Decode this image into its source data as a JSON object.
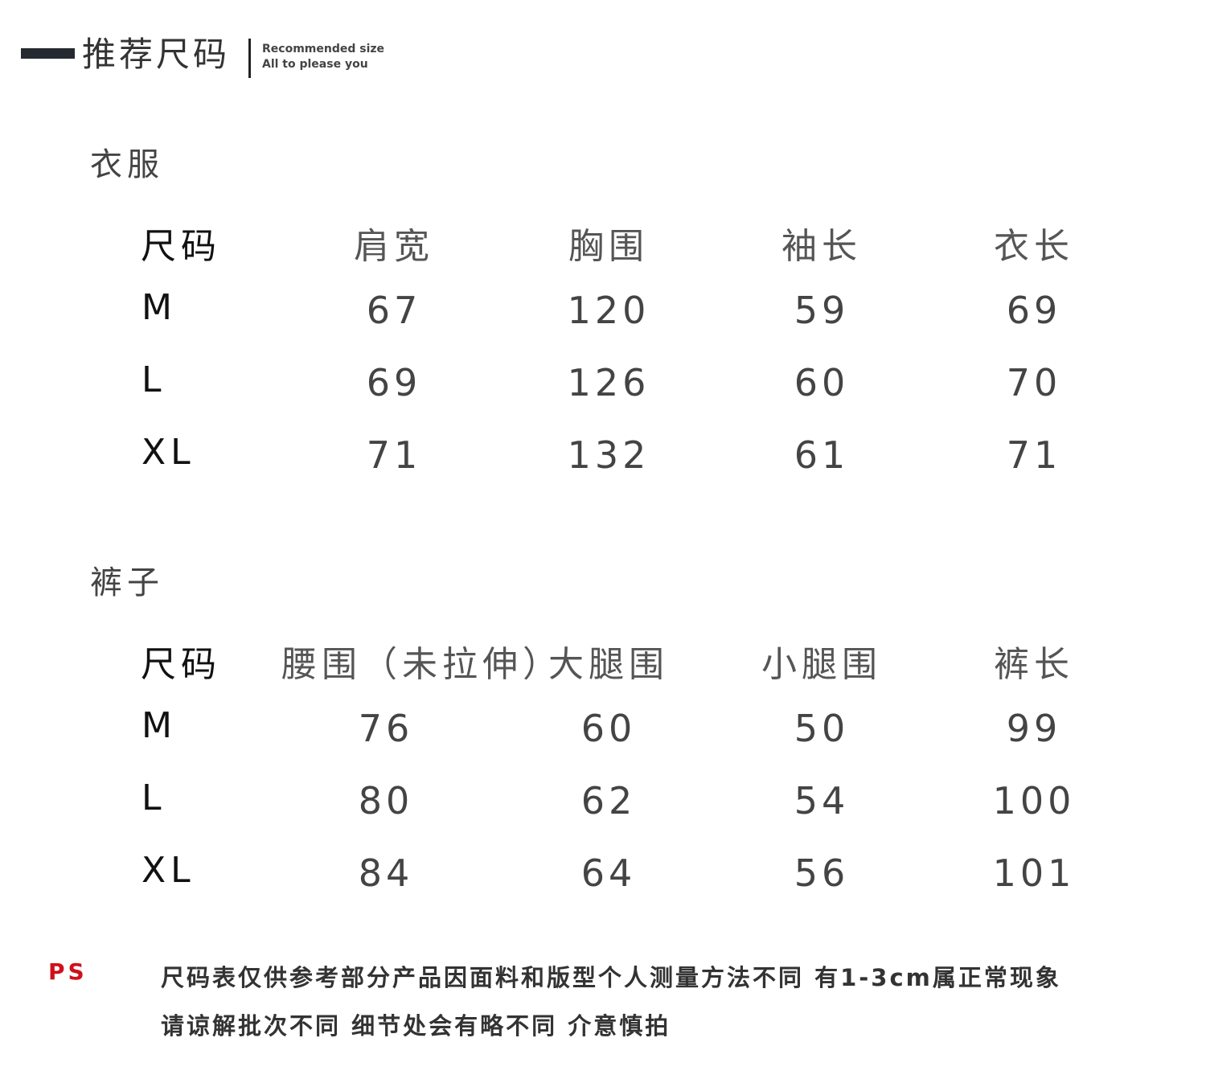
{
  "header": {
    "title": "推荐尺码",
    "subtitle_line1": "Recommended size",
    "subtitle_line2": "All to please you"
  },
  "tops": {
    "section_title": "衣服",
    "columns": [
      "尺码",
      "肩宽",
      "胸围",
      "袖长",
      "衣长"
    ],
    "rows": [
      {
        "size": "M",
        "values": [
          "67",
          "120",
          "59",
          "69"
        ]
      },
      {
        "size": "L",
        "values": [
          "69",
          "126",
          "60",
          "70"
        ]
      },
      {
        "size": "XL",
        "values": [
          "71",
          "132",
          "61",
          "71"
        ]
      }
    ]
  },
  "pants": {
    "section_title": "裤子",
    "columns": [
      "尺码",
      "腰围（未拉伸）",
      "大腿围",
      "小腿围",
      "裤长"
    ],
    "rows": [
      {
        "size": "M",
        "values": [
          "76",
          "60",
          "50",
          "99"
        ]
      },
      {
        "size": "L",
        "values": [
          "80",
          "62",
          "54",
          "100"
        ]
      },
      {
        "size": "XL",
        "values": [
          "84",
          "64",
          "56",
          "101"
        ]
      }
    ]
  },
  "note": {
    "label": "PS",
    "line1": "尺码表仅供参考部分产品因面料和版型个人测量方法不同 有1-3cm属正常现象",
    "line2": "请谅解批次不同 细节处会有略不同 介意慎拍",
    "label_color": "#d0101a"
  }
}
